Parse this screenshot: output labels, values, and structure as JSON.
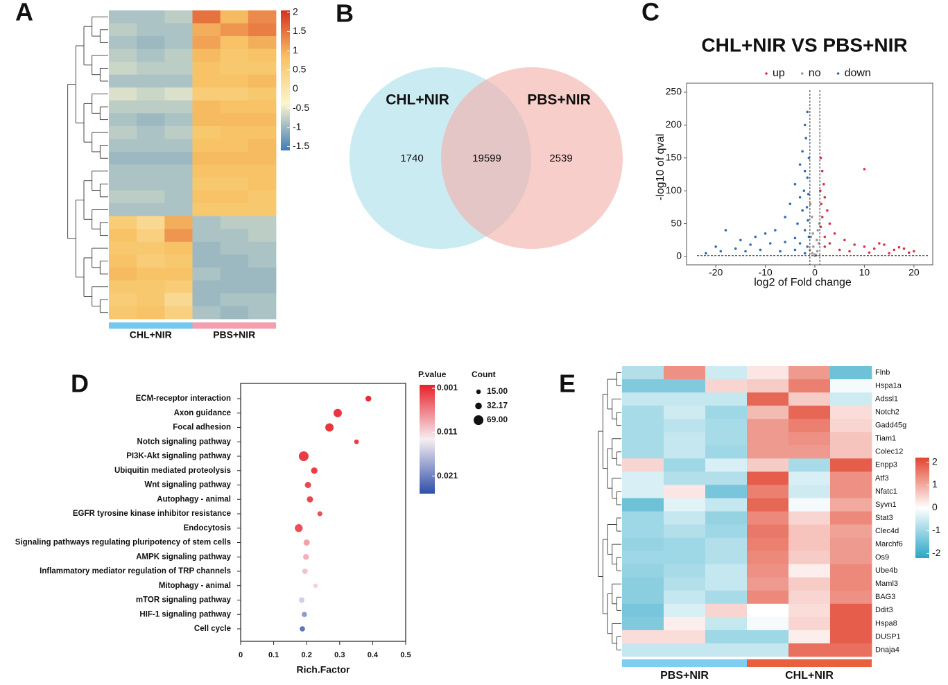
{
  "chart_data": [
    {
      "type": "heatmap",
      "label": "A",
      "groups": [
        {
          "name": "CHL+NIR",
          "color": "#74c7ee"
        },
        {
          "name": "PBS+NIR",
          "color": "#f59fae"
        }
      ],
      "values": [
        [
          -0.9,
          -0.9,
          -0.8,
          1.5,
          0.9,
          1.3
        ],
        [
          -0.8,
          -0.9,
          -0.9,
          1.0,
          1.2,
          1.4
        ],
        [
          -0.9,
          -1.0,
          -0.9,
          1.1,
          0.8,
          1.0
        ],
        [
          -0.8,
          -0.9,
          -0.8,
          0.9,
          0.7,
          0.8
        ],
        [
          -0.7,
          -0.8,
          -0.8,
          0.8,
          0.7,
          0.7
        ],
        [
          -0.9,
          -0.9,
          -0.9,
          0.8,
          0.8,
          0.9
        ],
        [
          -0.6,
          -0.7,
          -0.6,
          0.6,
          0.6,
          0.7
        ],
        [
          -0.8,
          -0.8,
          -0.8,
          0.9,
          0.8,
          0.8
        ],
        [
          -0.9,
          -1.0,
          -0.9,
          0.9,
          0.9,
          0.9
        ],
        [
          -0.8,
          -0.9,
          -0.8,
          0.7,
          0.8,
          0.8
        ],
        [
          -0.9,
          -0.9,
          -0.9,
          0.8,
          0.8,
          0.9
        ],
        [
          -1.0,
          -1.0,
          -1.0,
          0.9,
          0.9,
          0.9
        ],
        [
          -0.9,
          -0.9,
          -0.9,
          0.8,
          0.8,
          0.8
        ],
        [
          -0.9,
          -0.9,
          -0.9,
          0.7,
          0.7,
          0.8
        ],
        [
          -0.8,
          -0.8,
          -0.9,
          0.8,
          0.8,
          0.7
        ],
        [
          -0.9,
          -0.9,
          -0.9,
          0.7,
          0.7,
          0.7
        ],
        [
          0.6,
          0.3,
          1.0,
          -0.9,
          -0.8,
          -0.8
        ],
        [
          0.8,
          0.5,
          1.2,
          -0.9,
          -0.9,
          -0.8
        ],
        [
          0.7,
          0.7,
          0.8,
          -1.0,
          -0.9,
          -0.9
        ],
        [
          0.8,
          0.6,
          0.7,
          -1.0,
          -1.0,
          -0.9
        ],
        [
          0.9,
          0.8,
          0.8,
          -0.9,
          -1.0,
          -1.0
        ],
        [
          0.7,
          0.7,
          0.6,
          -1.0,
          -1.0,
          -1.0
        ],
        [
          0.6,
          0.7,
          0.3,
          -1.0,
          -0.9,
          -0.9
        ],
        [
          0.7,
          0.8,
          0.5,
          -0.9,
          -1.0,
          -0.9
        ]
      ],
      "colors": [
        "#3f7db9",
        "#fbf6cc",
        "#f8c264",
        "#d7301f"
      ],
      "clim": [
        -1.6,
        2.05
      ],
      "cticks": [
        2,
        1.5,
        1,
        0.5,
        0,
        -0.5,
        -1,
        -1.5
      ]
    },
    {
      "type": "venn",
      "label": "B",
      "sets": [
        {
          "name": "CHL+NIR",
          "color": "#a9dde9"
        },
        {
          "name": "PBS+NIR",
          "color": "#f4aea6"
        }
      ],
      "values": [
        1740,
        19599,
        2539
      ]
    },
    {
      "type": "scatter",
      "label": "C",
      "title": "CHL+NIR VS PBS+NIR",
      "xlabel": "log2 of Fold change",
      "ylabel": "-log10 of qval",
      "xlim": [
        -25.9,
        23.8
      ],
      "ylim": [
        -12.7,
        263.7
      ],
      "xticks": [
        -20,
        -10,
        0,
        10,
        20
      ],
      "yticks": [
        0,
        50,
        100,
        150,
        200,
        250
      ],
      "thresholds": {
        "x": [
          -1,
          1
        ],
        "y": 1.3
      },
      "series": [
        {
          "name": "up",
          "color": "#d7344a",
          "x": [
            1.2,
            1.5,
            1.8,
            1.1,
            2,
            1.3,
            2.5,
            1.5,
            3,
            1.2,
            4,
            2,
            6,
            8,
            10,
            12,
            14,
            16,
            18,
            20,
            15,
            11,
            7,
            5,
            3,
            2,
            13,
            17,
            10,
            19
          ],
          "y": [
            150,
            130,
            110,
            100,
            90,
            80,
            70,
            60,
            50,
            45,
            35,
            30,
            25,
            18,
            15,
            12,
            18,
            10,
            12,
            8,
            5,
            6,
            8,
            10,
            20,
            15,
            20,
            14,
            133,
            6
          ]
        },
        {
          "name": "no",
          "color": "#9a9a9a",
          "x": [
            -1,
            -0.5,
            0,
            0.5,
            0.8,
            -0.8,
            0.3,
            -0.3,
            0.6,
            -0.6,
            0.9,
            -0.9,
            0,
            0.4,
            -0.4
          ],
          "y": [
            10,
            5,
            3,
            8,
            20,
            30,
            2,
            15,
            40,
            60,
            50,
            80,
            1,
            25,
            35
          ]
        },
        {
          "name": "down",
          "color": "#2f6db5",
          "x": [
            -1.5,
            -2,
            -1.8,
            -2.5,
            -1.2,
            -3,
            -2,
            -1.5,
            -4,
            -2.2,
            -1.3,
            -3,
            -5,
            -1.6,
            -2.5,
            -6,
            -1.4,
            -3.5,
            -8,
            -2,
            -10,
            -1.2,
            -12,
            -4,
            -15,
            -18,
            -20,
            -16,
            -13,
            -9,
            -6,
            -3,
            -1.5,
            -22,
            -19,
            -11,
            -7,
            -2,
            -4,
            -14
          ],
          "y": [
            220,
            200,
            180,
            160,
            150,
            140,
            130,
            120,
            110,
            100,
            95,
            90,
            80,
            75,
            70,
            60,
            55,
            50,
            40,
            40,
            35,
            30,
            30,
            28,
            25,
            40,
            15,
            12,
            18,
            20,
            22,
            20,
            15,
            5,
            8,
            10,
            8,
            5,
            10,
            8
          ]
        }
      ]
    },
    {
      "type": "bubble",
      "label": "D",
      "xlabel": "Rich.Factor",
      "categories": [
        "ECM-receptor interaction",
        "Axon guidance",
        "Focal adhesion",
        "Notch signaling pathway",
        "PI3K-Akt signaling pathway",
        "Ubiquitin mediated proteolysis",
        "Wnt signaling pathway",
        "Autophagy - animal",
        "EGFR tyrosine kinase inhibitor resistance",
        "Endocytosis",
        "Signaling pathways regulating pluripotency of stem cells",
        "AMPK signaling pathway",
        "Inflammatory mediator regulation of TRP channels",
        "Mitophagy - animal",
        "mTOR signaling pathway",
        "HIF-1 signaling pathway",
        "Cell cycle"
      ],
      "values": [
        0.387,
        0.294,
        0.269,
        0.351,
        0.191,
        0.223,
        0.204,
        0.21,
        0.24,
        0.176,
        0.2,
        0.198,
        0.195,
        0.227,
        0.185,
        0.193,
        0.187
      ],
      "sizes": [
        25,
        50,
        50,
        16,
        69,
        30,
        28,
        28,
        18,
        45,
        28,
        25,
        22,
        15,
        22,
        20,
        20
      ],
      "pvalues": [
        0.001,
        0.0015,
        0.0015,
        0.002,
        0.002,
        0.002,
        0.0025,
        0.0025,
        0.003,
        0.003,
        0.008,
        0.009,
        0.01,
        0.011,
        0.015,
        0.019,
        0.022
      ],
      "xlim": [
        0,
        0.5
      ],
      "xticks": [
        0,
        0.1,
        0.2,
        0.3,
        0.4,
        0.5
      ],
      "color_title": "P.value",
      "colors": [
        "#e8202a",
        "#f7eef3",
        "#2f4fa8"
      ],
      "clim": [
        0.0002,
        0.025
      ],
      "cticks": [
        0.001,
        0.011,
        0.021
      ],
      "size_title": "Count",
      "size_legend": [
        {
          "value": 15,
          "label": "15.00"
        },
        {
          "value": 32.17,
          "label": "32.17"
        },
        {
          "value": 69,
          "label": "69.00"
        }
      ]
    },
    {
      "type": "heatmap",
      "label": "E",
      "groups": [
        {
          "name": "PBS+NIR",
          "color": "#7fcdf0"
        },
        {
          "name": "CHL+NIR",
          "color": "#e8603c"
        }
      ],
      "rows": [
        "Flnb",
        "Hspa1a",
        "Adssl1",
        "Notch2",
        "Gadd45g",
        "Tiam1",
        "Colec12",
        "Enpp3",
        "Atf3",
        "Nfatc1",
        "Syvn1",
        "Stat3",
        "Clec4d",
        "Marchf6",
        "Os9",
        "Ube4b",
        "Maml3",
        "BAG3",
        "Ddit3",
        "Hspa8",
        "DUSP1",
        "Dnaja4"
      ],
      "values": [
        [
          -0.8,
          1.3,
          -0.5,
          0.3,
          1.2,
          -1.5
        ],
        [
          -1.3,
          -1.3,
          0.5,
          0.6,
          1.5,
          -0.1
        ],
        [
          -0.6,
          -0.6,
          -0.6,
          1.8,
          0.6,
          -0.5
        ],
        [
          -0.9,
          -0.5,
          -1.0,
          0.8,
          1.8,
          0.4
        ],
        [
          -0.9,
          -0.7,
          -0.9,
          1.2,
          1.5,
          0.5
        ],
        [
          -0.9,
          -0.6,
          -0.9,
          1.2,
          1.3,
          0.7
        ],
        [
          -0.9,
          -0.6,
          -1.0,
          1.2,
          1.2,
          0.7
        ],
        [
          0.5,
          -1.0,
          -0.4,
          0.6,
          -0.9,
          1.9
        ],
        [
          -0.4,
          -0.8,
          -0.8,
          1.9,
          -0.4,
          1.3
        ],
        [
          -0.4,
          0.3,
          -1.4,
          1.5,
          -0.5,
          1.3
        ],
        [
          -1.5,
          -0.3,
          -0.6,
          1.8,
          -0.1,
          1.0
        ],
        [
          -1.0,
          -0.6,
          -1.1,
          1.4,
          0.5,
          1.4
        ],
        [
          -1.0,
          -0.8,
          -1.0,
          1.6,
          0.7,
          1.1
        ],
        [
          -1.1,
          -1.0,
          -0.8,
          1.5,
          0.7,
          1.2
        ],
        [
          -1.0,
          -1.0,
          -0.8,
          1.4,
          0.6,
          1.2
        ],
        [
          -1.1,
          -0.9,
          -0.6,
          1.3,
          0.2,
          1.4
        ],
        [
          -1.2,
          -0.8,
          -0.6,
          1.2,
          0.6,
          1.4
        ],
        [
          -1.2,
          -0.6,
          -0.9,
          1.4,
          0.5,
          1.3
        ],
        [
          -1.4,
          -0.4,
          0.5,
          0.0,
          0.4,
          1.9
        ],
        [
          -1.3,
          0.2,
          -0.6,
          -0.1,
          0.5,
          1.9
        ],
        [
          0.4,
          0.4,
          -1.0,
          -1.0,
          0.2,
          1.9
        ],
        [
          -0.6,
          -0.6,
          -0.6,
          -0.6,
          1.7,
          1.7
        ]
      ],
      "colors": [
        "#2aa6c6",
        "#ffffff",
        "#e2452f"
      ],
      "clim": [
        -2.2,
        2.2
      ],
      "cticks": [
        2,
        1,
        0,
        -1,
        -2
      ]
    }
  ]
}
